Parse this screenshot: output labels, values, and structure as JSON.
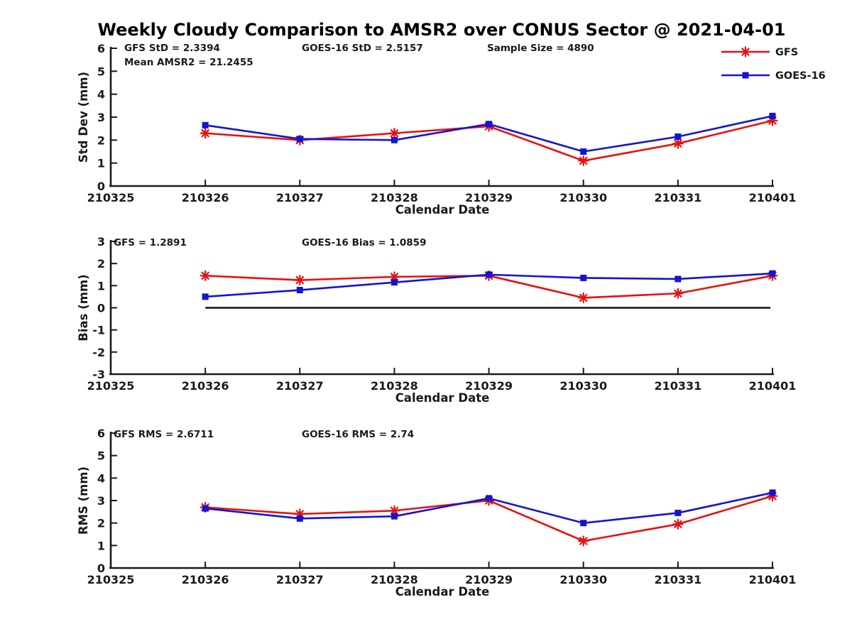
{
  "title": "Weekly Cloudy Comparison to AMSR2 over CONUS Sector @ 2021-04-01",
  "colors": {
    "gfs": "#e81010",
    "goes16": "#1414d2",
    "axis": "#1a1a1a",
    "zero_line": "#111111"
  },
  "chart_data": [
    {
      "type": "line",
      "name": "std-dev",
      "ylabel": "Std Dev (mm)",
      "xlabel": "Calendar Date",
      "ylim": [
        0,
        6
      ],
      "yticks": [
        0,
        1,
        2,
        3,
        4,
        5,
        6
      ],
      "categories": [
        "210325",
        "210326",
        "210327",
        "210328",
        "210329",
        "210330",
        "210331",
        "210401"
      ],
      "value_start_index": 1,
      "grid": false,
      "zero_line": false,
      "annotations": [
        {
          "text": "GFS StD = 2.3394",
          "col": 0,
          "row": 0
        },
        {
          "text": "Mean AMSR2 = 21.2455",
          "col": 0,
          "row": 1
        },
        {
          "text": "GOES-16 StD = 2.5157",
          "col": 1,
          "row": 0
        },
        {
          "text": "Sample Size = 4890",
          "col": 2,
          "row": 0
        }
      ],
      "series": [
        {
          "name": "GFS",
          "color": "#e81010",
          "marker": "asterisk",
          "values": [
            2.3,
            2.0,
            2.3,
            2.6,
            1.1,
            1.85,
            2.85
          ]
        },
        {
          "name": "GOES-16",
          "color": "#1414d2",
          "marker": "square",
          "values": [
            2.65,
            2.05,
            2.0,
            2.7,
            1.5,
            2.15,
            3.05
          ]
        }
      ],
      "legend": {
        "show": true,
        "position": "top-right",
        "items": [
          "GFS",
          "GOES-16"
        ]
      }
    },
    {
      "type": "line",
      "name": "bias",
      "ylabel": "Bias (mm)",
      "xlabel": "Calendar Date",
      "ylim": [
        -3,
        3
      ],
      "yticks": [
        -3,
        -2,
        -1,
        0,
        1,
        2,
        3
      ],
      "categories": [
        "210325",
        "210326",
        "210327",
        "210328",
        "210329",
        "210330",
        "210331",
        "210401"
      ],
      "value_start_index": 1,
      "grid": false,
      "zero_line": true,
      "annotations": [
        {
          "text": "GFS = 1.2891",
          "col": 0,
          "row": 0
        },
        {
          "text": "GOES-16 Bias  = 1.0859",
          "col": 1,
          "row": 0
        }
      ],
      "series": [
        {
          "name": "GFS",
          "color": "#e81010",
          "marker": "asterisk",
          "values": [
            1.45,
            1.25,
            1.4,
            1.45,
            0.45,
            0.65,
            1.45
          ]
        },
        {
          "name": "GOES-16",
          "color": "#1414d2",
          "marker": "square",
          "values": [
            0.5,
            0.8,
            1.15,
            1.5,
            1.35,
            1.3,
            1.55
          ]
        }
      ],
      "legend": {
        "show": false,
        "position": "",
        "items": []
      }
    },
    {
      "type": "line",
      "name": "rms",
      "ylabel": "RMS (mm)",
      "xlabel": "Calendar Date",
      "ylim": [
        0,
        6
      ],
      "yticks": [
        0,
        1,
        2,
        3,
        4,
        5,
        6
      ],
      "categories": [
        "210325",
        "210326",
        "210327",
        "210328",
        "210329",
        "210330",
        "210331",
        "210401"
      ],
      "value_start_index": 1,
      "grid": false,
      "zero_line": false,
      "annotations": [
        {
          "text": "GFS RMS = 2.6711",
          "col": 0,
          "row": 0
        },
        {
          "text": "GOES-16 RMS = 2.74",
          "col": 1,
          "row": 0
        }
      ],
      "series": [
        {
          "name": "GFS",
          "color": "#e81010",
          "marker": "asterisk",
          "values": [
            2.7,
            2.4,
            2.55,
            3.0,
            1.2,
            1.95,
            3.2
          ]
        },
        {
          "name": "GOES-16",
          "color": "#1414d2",
          "marker": "square",
          "values": [
            2.65,
            2.2,
            2.3,
            3.1,
            2.0,
            2.45,
            3.35
          ]
        }
      ],
      "legend": {
        "show": false,
        "position": "",
        "items": []
      }
    }
  ]
}
